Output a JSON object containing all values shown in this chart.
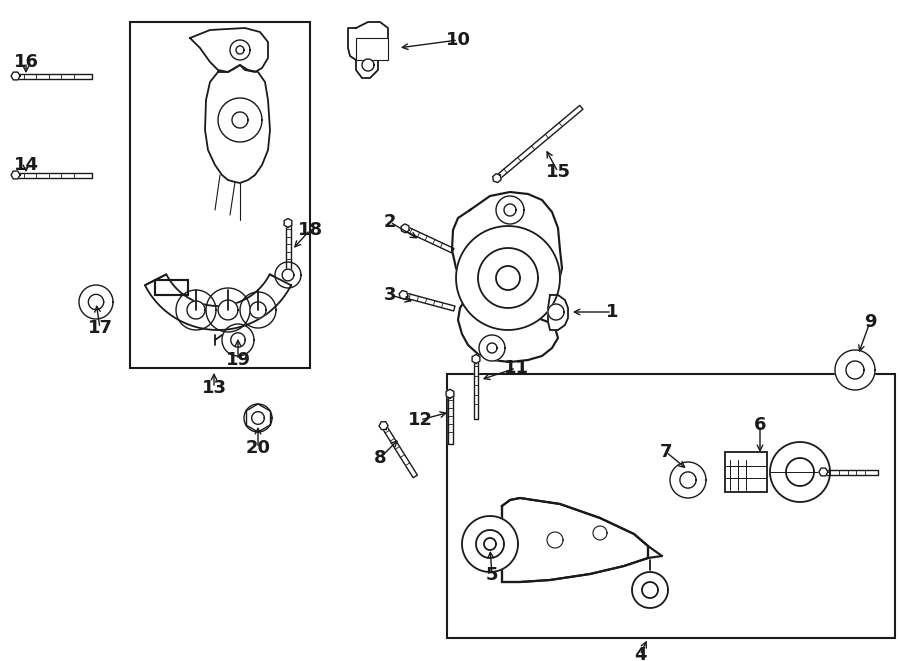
{
  "bg_color": "#ffffff",
  "line_color": "#1a1a1a",
  "fig_width": 9.0,
  "fig_height": 6.61,
  "dpi": 100,
  "box1": [
    130,
    22,
    310,
    22,
    310,
    368,
    130,
    368
  ],
  "box2": [
    447,
    374,
    895,
    374,
    895,
    638,
    447,
    638
  ],
  "label_fontsize": 13
}
